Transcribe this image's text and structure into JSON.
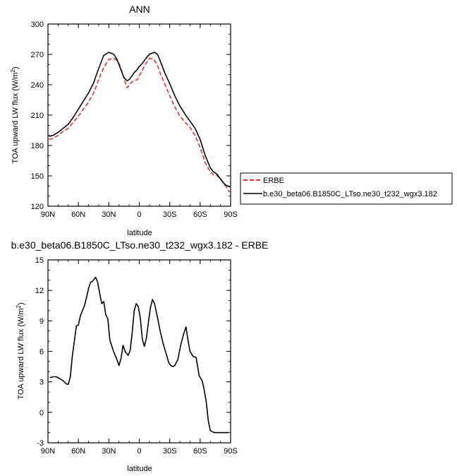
{
  "chart_data": [
    {
      "type": "line",
      "title": "ANN",
      "xlabel": "latitude",
      "ylabel": "TOA upward LW flux (W/m",
      "ylabel_sup": "2",
      "ylabel_close": ")",
      "xlim": [
        90,
        -90
      ],
      "x_ticks": [
        90,
        60,
        30,
        0,
        -30,
        -60,
        -90
      ],
      "x_tick_labels": [
        "90N",
        "60N",
        "30N",
        "0",
        "30S",
        "60S",
        "90S"
      ],
      "ylim": [
        120,
        300
      ],
      "y_ticks": [
        120,
        150,
        180,
        210,
        240,
        270,
        300
      ],
      "y_tick_labels": [
        "120",
        "150",
        "180",
        "210",
        "240",
        "270",
        "300"
      ],
      "legend_placement": "outside-right",
      "series": [
        {
          "name": "ERBE",
          "color": "#e8312a",
          "dash": "dashed",
          "x": [
            89,
            85,
            80,
            75,
            70,
            65,
            60,
            55,
            50,
            45,
            40,
            35,
            30,
            25,
            22,
            20,
            17,
            15,
            12,
            10,
            7,
            5,
            2,
            0,
            -3,
            -5,
            -8,
            -10,
            -12,
            -15,
            -18,
            -20,
            -22,
            -25,
            -30,
            -35,
            -40,
            -45,
            -50,
            -55,
            -60,
            -65,
            -70,
            -73,
            -75,
            -77,
            -80,
            -83,
            -85,
            -87,
            -89
          ],
          "y": [
            186,
            187,
            190,
            194,
            197,
            203,
            209,
            216,
            223,
            232,
            245,
            257,
            265,
            266,
            264,
            261,
            253,
            246,
            237,
            239,
            243,
            244,
            245,
            249,
            254,
            259,
            263,
            266,
            266,
            264,
            259,
            253,
            248,
            241,
            229,
            218,
            209,
            203,
            198,
            190,
            178,
            163,
            154,
            151,
            151,
            150,
            147,
            143,
            140,
            137,
            134
          ]
        },
        {
          "name": "b.e30_beta06.B1850C_LTso.ne30_t232_wgx3.182",
          "color": "#000000",
          "dash": "solid",
          "x": [
            89,
            85,
            80,
            75,
            70,
            65,
            60,
            55,
            50,
            45,
            40,
            35,
            30,
            25,
            22,
            20,
            17,
            15,
            12,
            10,
            7,
            5,
            2,
            0,
            -3,
            -5,
            -8,
            -10,
            -12,
            -15,
            -18,
            -20,
            -22,
            -25,
            -30,
            -35,
            -40,
            -45,
            -50,
            -55,
            -60,
            -65,
            -70,
            -73,
            -75,
            -77,
            -80,
            -83,
            -85,
            -87,
            -89
          ],
          "y": [
            189,
            190,
            193,
            197,
            201,
            208,
            216,
            224,
            232,
            242,
            256,
            269,
            272,
            270,
            265,
            260,
            252,
            247,
            244,
            245,
            249,
            252,
            255,
            258,
            261,
            264,
            268,
            270,
            271,
            272,
            270,
            265,
            260,
            252,
            241,
            229,
            219,
            211,
            204,
            197,
            186,
            170,
            158,
            154,
            153,
            151,
            147,
            143,
            141,
            140,
            139
          ]
        }
      ]
    },
    {
      "type": "line",
      "title": "b.e30_beta06.B1850C_LTso.ne30_t232_wgx3.182 - ERBE",
      "xlabel": "latitude",
      "ylabel": "TOA upward LW flux (W/m",
      "ylabel_sup": "2",
      "ylabel_close": ")",
      "xlim": [
        90,
        -90
      ],
      "x_ticks": [
        90,
        60,
        30,
        0,
        -30,
        -60,
        -90
      ],
      "x_tick_labels": [
        "90N",
        "60N",
        "30N",
        "0",
        "30S",
        "60S",
        "90S"
      ],
      "ylim": [
        -3,
        15
      ],
      "y_ticks": [
        -3,
        0,
        3,
        6,
        9,
        12,
        15
      ],
      "y_tick_labels": [
        "-3",
        "0",
        "3",
        "6",
        "9",
        "12",
        "15"
      ],
      "series": [
        {
          "color": "#000000",
          "dash": "solid",
          "x": [
            88,
            85,
            82,
            78,
            75,
            72,
            70,
            68,
            66,
            64,
            62,
            60,
            58,
            56,
            54,
            52,
            50,
            48,
            46,
            43,
            41,
            39,
            37,
            35,
            33,
            31,
            29,
            27,
            25,
            22,
            20,
            18,
            16,
            14,
            11,
            9,
            7,
            5,
            3,
            1,
            -1,
            -3,
            -5,
            -7,
            -9,
            -11,
            -13,
            -15,
            -18,
            -21,
            -24,
            -27,
            -29,
            -31,
            -33,
            -35,
            -38,
            -41,
            -44,
            -46,
            -48,
            -50,
            -53,
            -56,
            -59,
            -62,
            -64,
            -66,
            -68,
            -70,
            -72,
            -74,
            -76,
            -78,
            -80,
            -82,
            -84,
            -86,
            -88
          ],
          "y": [
            3.4,
            3.5,
            3.5,
            3.3,
            3.1,
            2.8,
            2.75,
            3.5,
            5.5,
            7.0,
            8.5,
            8.6,
            9.5,
            10.0,
            10.5,
            11.3,
            12.2,
            12.8,
            12.9,
            13.3,
            12.8,
            11.7,
            10.7,
            10.9,
            9.6,
            9.2,
            7.1,
            6.5,
            5.9,
            5.2,
            4.6,
            5.3,
            6.6,
            6.0,
            5.6,
            6.1,
            7.8,
            10.0,
            10.7,
            10.4,
            9.3,
            7.2,
            6.5,
            7.3,
            8.9,
            10.3,
            11.1,
            10.7,
            9.3,
            7.8,
            6.6,
            5.6,
            4.9,
            4.6,
            4.5,
            4.6,
            5.2,
            6.7,
            7.8,
            8.4,
            7.1,
            6.0,
            5.5,
            5.4,
            3.6,
            3.1,
            2.2,
            1.0,
            -0.8,
            -1.8,
            -1.9,
            -2.0,
            -2.0,
            -2.0,
            -2.0,
            -2.0,
            -2.0,
            -2.0,
            -2.0
          ]
        }
      ]
    }
  ]
}
